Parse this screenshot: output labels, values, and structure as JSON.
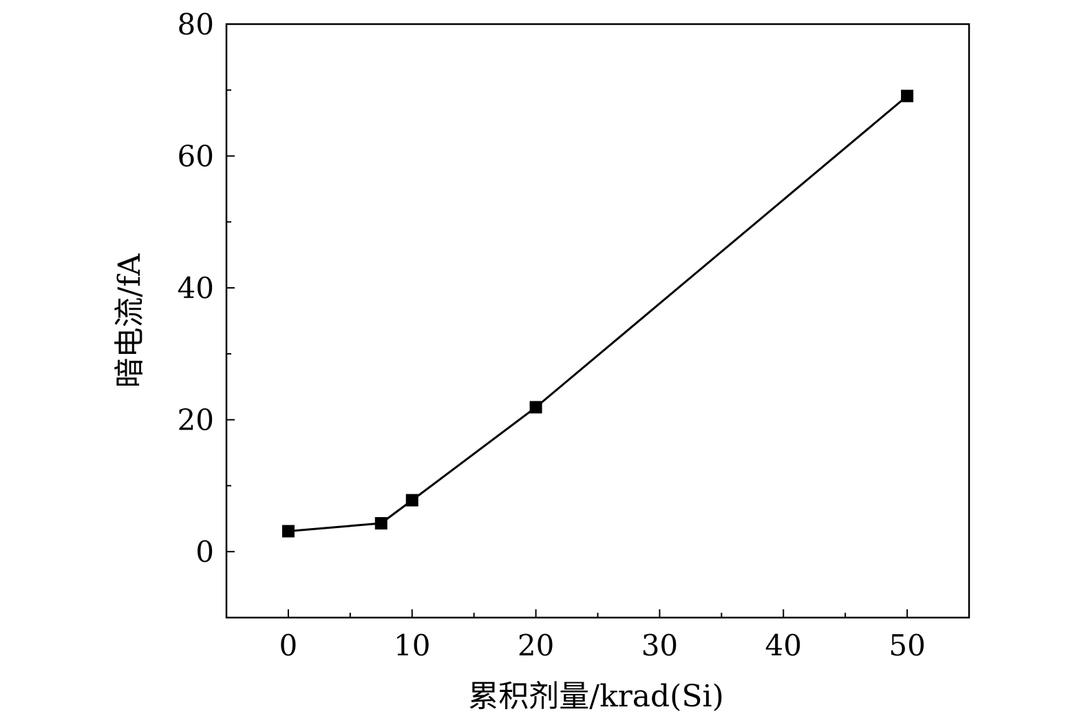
{
  "chart_data": {
    "type": "line",
    "title": "",
    "xlabel": "累积剂量/krad(Si)",
    "ylabel": "暗电流/fA",
    "xlim": [
      -5,
      55
    ],
    "ylim": [
      -10,
      80
    ],
    "x_ticks": [
      0,
      10,
      20,
      30,
      40,
      50
    ],
    "y_ticks": [
      0,
      20,
      40,
      60,
      80
    ],
    "x_minor_step": 5,
    "y_minor_step": 10,
    "grid": false,
    "legend": "none",
    "series": [
      {
        "marker": "square",
        "color": "#000000",
        "x": [
          0,
          7.5,
          10,
          20,
          50
        ],
        "y": [
          3.1,
          4.3,
          7.8,
          21.9,
          69.1
        ]
      }
    ]
  }
}
